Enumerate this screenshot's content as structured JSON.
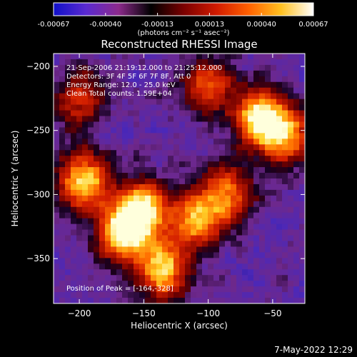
{
  "colorbar": {
    "ticks": [
      "-0.00067",
      "-0.00040",
      "-0.00013",
      "0.00013",
      "0.00040",
      "0.00067"
    ],
    "unit_label": "(photons cm⁻² s⁻¹ asec⁻²)",
    "stops": [
      "#1010c8",
      "#5a2ad0",
      "#8c2a8c",
      "#000000",
      "#7a0000",
      "#d01a00",
      "#ff6000",
      "#ffc020",
      "#ffffff"
    ]
  },
  "chart_data": {
    "type": "heatmap",
    "title": "Reconstructed RHESSI Image",
    "xlabel": "Heliocentric X (arcsec)",
    "ylabel": "Heliocentric Y (arcsec)",
    "xlim": [
      -220,
      -25
    ],
    "ylim": [
      -385,
      -190
    ],
    "xticks": [
      -200,
      -150,
      -100,
      -50
    ],
    "yticks": [
      -200,
      -250,
      -300,
      -350
    ],
    "xtick_labels": [
      "−200",
      "−150",
      "−100",
      "−50"
    ],
    "ytick_labels": [
      "−200",
      "−250",
      "−300",
      "−350"
    ],
    "peak": [
      -164,
      -328
    ],
    "sources": [
      {
        "x": -196,
        "y": -290,
        "value": 0.95
      },
      {
        "x": -165,
        "y": -330,
        "value": 1.0
      },
      {
        "x": -150,
        "y": -310,
        "value": 0.8
      },
      {
        "x": -135,
        "y": -360,
        "value": 0.85
      },
      {
        "x": -110,
        "y": -320,
        "value": 0.75
      },
      {
        "x": -85,
        "y": -300,
        "value": 0.7
      },
      {
        "x": -60,
        "y": -240,
        "value": 0.9
      },
      {
        "x": -40,
        "y": -255,
        "value": 0.75
      },
      {
        "x": -100,
        "y": -215,
        "value": 0.6
      },
      {
        "x": -200,
        "y": -225,
        "value": 0.55
      }
    ],
    "annotations": [
      "21-Sep-2006 21:19:12.000 to 21:25:12.000",
      "Detectors: 3F 4F 5F 6F 7F 8F, Att 0",
      "Energy Range: 12.0 - 25.0 keV",
      "Clean      Total counts: 1.59E+04"
    ],
    "peak_label": "Position of Peak = [-164,-328]"
  },
  "footer": {
    "timestamp": "7-May-2022 12:29"
  }
}
